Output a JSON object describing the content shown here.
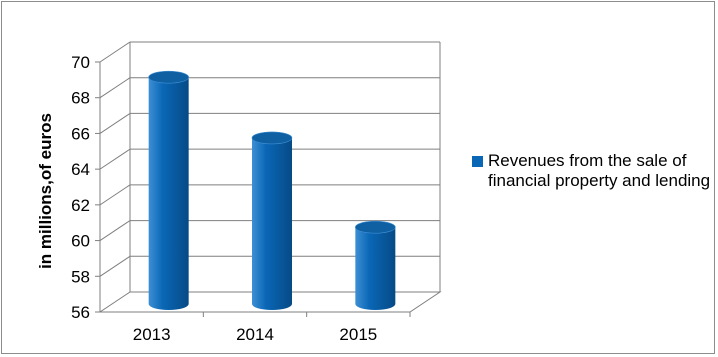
{
  "chart_data": {
    "type": "bar",
    "style": "3d-cylinder",
    "categories": [
      "2013",
      "2014",
      "2015"
    ],
    "series": [
      {
        "name": "Revenues from the sale of financial property and lending",
        "values": [
          68.7,
          65.3,
          60.3
        ]
      }
    ],
    "title": "",
    "xlabel": "",
    "ylabel": "in millions,of euros",
    "ylim": [
      56,
      70
    ],
    "yticks": [
      56,
      58,
      60,
      62,
      64,
      66,
      68,
      70
    ],
    "grid": true,
    "legend_position": "right",
    "colors": {
      "bar_main": "#0a67b6",
      "bar_light": "#3d8fd4",
      "bar_dark": "#064a86",
      "bar_top": "#0f5fa3",
      "grid": "#7f7f7f",
      "text": "#000000"
    }
  }
}
